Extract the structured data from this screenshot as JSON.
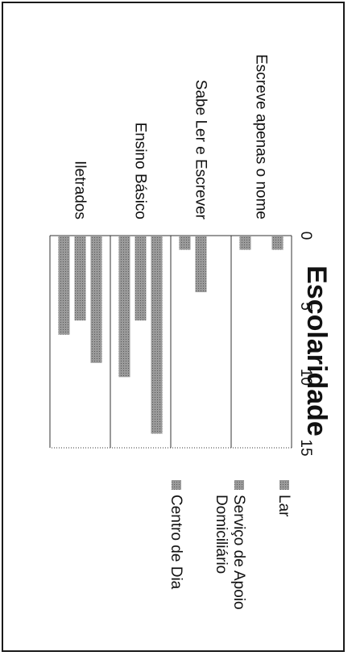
{
  "chart_data": {
    "type": "bar",
    "orientation": "horizontal",
    "title": "Escolaridade",
    "categories": [
      "Escreve apenas o nome",
      "Sabe Ler e Escrever",
      "Ensino Básico",
      "Iletrados"
    ],
    "series": [
      {
        "name": "Lar",
        "values": [
          1,
          0,
          14,
          9
        ]
      },
      {
        "name": "Serviço de Apoio Domiciliário",
        "values": [
          0,
          4,
          6,
          6
        ]
      },
      {
        "name": "Centro de Dia",
        "values": [
          1,
          1,
          10,
          7
        ]
      }
    ],
    "xlim": [
      0,
      15
    ],
    "xticks": [
      "0",
      "5",
      "10",
      "15"
    ],
    "legend_lines": [
      [
        "Lar"
      ],
      [
        "Serviço de Apoio",
        "Domiciliário"
      ],
      [
        "Centro de Dia"
      ]
    ],
    "legend_position": "right",
    "grid": true,
    "bar_color": "#8c8c8c"
  }
}
